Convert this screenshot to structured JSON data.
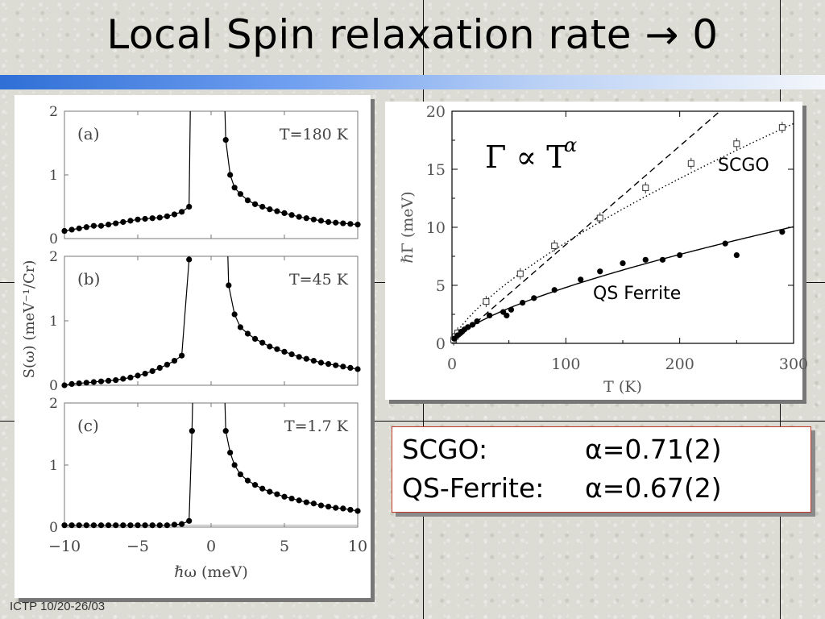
{
  "slide": {
    "title": "Local Spin relaxation rate → 0",
    "footer": "ICTP 10/20-26/03"
  },
  "fit_results": {
    "rows": [
      {
        "label": "SCGO:",
        "value": "α=0.71(2)"
      },
      {
        "label": "QS-Ferrite:",
        "value": "α=0.67(2)"
      }
    ]
  },
  "colors": {
    "title_bar_start": "#2f6fd6",
    "fit_box_border": "#c0392b",
    "marker": "#000000"
  },
  "chart_data": [
    {
      "type": "scatter",
      "xlabel": "ℏω (meV)",
      "ylabel": "S(ω)  (meV⁻¹/Cr)",
      "xlim": [
        -10,
        10
      ],
      "x_ticks": [
        "−10",
        "−5",
        "0",
        "5",
        "10"
      ],
      "panels": [
        {
          "label": "(a)",
          "annotation": "T=180 K",
          "ylim": [
            0,
            2
          ],
          "y_ticks": [
            "0",
            "1",
            "2"
          ],
          "points_neg": [
            [
              -10,
              0.12
            ],
            [
              -9.5,
              0.14
            ],
            [
              -9,
              0.16
            ],
            [
              -8.5,
              0.18
            ],
            [
              -8,
              0.2
            ],
            [
              -7.5,
              0.2
            ],
            [
              -7,
              0.22
            ],
            [
              -6.5,
              0.24
            ],
            [
              -6,
              0.26
            ],
            [
              -5.5,
              0.28
            ],
            [
              -5,
              0.3
            ],
            [
              -4.5,
              0.31
            ],
            [
              -4,
              0.32
            ],
            [
              -3.5,
              0.33
            ],
            [
              -3,
              0.35
            ],
            [
              -2.5,
              0.38
            ],
            [
              -2,
              0.42
            ],
            [
              -1.5,
              0.5
            ]
          ],
          "points_pos": [
            [
              1,
              1.55
            ],
            [
              1.3,
              1.0
            ],
            [
              1.6,
              0.8
            ],
            [
              2,
              0.7
            ],
            [
              2.5,
              0.6
            ],
            [
              3,
              0.54
            ],
            [
              3.5,
              0.5
            ],
            [
              4,
              0.46
            ],
            [
              4.5,
              0.43
            ],
            [
              5,
              0.4
            ],
            [
              5.5,
              0.37
            ],
            [
              6,
              0.34
            ],
            [
              6.5,
              0.32
            ],
            [
              7,
              0.3
            ],
            [
              7.5,
              0.28
            ],
            [
              8,
              0.26
            ],
            [
              8.5,
              0.25
            ],
            [
              9,
              0.24
            ],
            [
              9.5,
              0.23
            ],
            [
              10,
              0.22
            ]
          ]
        },
        {
          "label": "(b)",
          "annotation": "T=45 K",
          "ylim": [
            0,
            2
          ],
          "y_ticks": [
            "0",
            "1",
            "2"
          ],
          "points_neg": [
            [
              -10,
              0.0
            ],
            [
              -9.5,
              0.02
            ],
            [
              -9,
              0.03
            ],
            [
              -8.5,
              0.04
            ],
            [
              -8,
              0.05
            ],
            [
              -7.5,
              0.06
            ],
            [
              -7,
              0.07
            ],
            [
              -6.5,
              0.08
            ],
            [
              -6,
              0.1
            ],
            [
              -5.5,
              0.12
            ],
            [
              -5,
              0.15
            ],
            [
              -4.5,
              0.18
            ],
            [
              -4,
              0.22
            ],
            [
              -3.5,
              0.27
            ],
            [
              -3,
              0.32
            ],
            [
              -2.5,
              0.38
            ],
            [
              -2,
              0.46
            ],
            [
              -1.5,
              1.95
            ]
          ],
          "points_pos": [
            [
              1.2,
              1.55
            ],
            [
              1.6,
              1.1
            ],
            [
              2,
              0.9
            ],
            [
              2.5,
              0.8
            ],
            [
              3,
              0.72
            ],
            [
              3.5,
              0.66
            ],
            [
              4,
              0.6
            ],
            [
              4.5,
              0.56
            ],
            [
              5,
              0.52
            ],
            [
              5.5,
              0.48
            ],
            [
              6,
              0.44
            ],
            [
              6.5,
              0.41
            ],
            [
              7,
              0.38
            ],
            [
              7.5,
              0.35
            ],
            [
              8,
              0.33
            ],
            [
              8.5,
              0.31
            ],
            [
              9,
              0.29
            ],
            [
              9.5,
              0.27
            ],
            [
              10,
              0.25
            ]
          ]
        },
        {
          "label": "(c)",
          "annotation": "T=1.7 K",
          "ylim": [
            0,
            2
          ],
          "y_ticks": [
            "0",
            "1",
            "2"
          ],
          "points_neg": [
            [
              -10,
              0.03
            ],
            [
              -9.5,
              0.03
            ],
            [
              -9,
              0.03
            ],
            [
              -8.5,
              0.03
            ],
            [
              -8,
              0.03
            ],
            [
              -7.5,
              0.03
            ],
            [
              -7,
              0.03
            ],
            [
              -6.5,
              0.03
            ],
            [
              -6,
              0.03
            ],
            [
              -5.5,
              0.03
            ],
            [
              -5,
              0.03
            ],
            [
              -4.5,
              0.03
            ],
            [
              -4,
              0.03
            ],
            [
              -3.5,
              0.03
            ],
            [
              -3,
              0.03
            ],
            [
              -2.5,
              0.04
            ],
            [
              -2,
              0.05
            ],
            [
              -1.5,
              0.1
            ],
            [
              -1.3,
              1.55
            ]
          ],
          "points_pos": [
            [
              1,
              1.55
            ],
            [
              1.3,
              1.2
            ],
            [
              1.6,
              1.0
            ],
            [
              2,
              0.85
            ],
            [
              2.5,
              0.75
            ],
            [
              3,
              0.68
            ],
            [
              3.5,
              0.62
            ],
            [
              4,
              0.57
            ],
            [
              4.5,
              0.53
            ],
            [
              5,
              0.49
            ],
            [
              5.5,
              0.46
            ],
            [
              6,
              0.43
            ],
            [
              6.5,
              0.4
            ],
            [
              7,
              0.38
            ],
            [
              7.5,
              0.35
            ],
            [
              8,
              0.33
            ],
            [
              8.5,
              0.31
            ],
            [
              9,
              0.3
            ],
            [
              9.5,
              0.28
            ],
            [
              10,
              0.26
            ]
          ]
        }
      ]
    },
    {
      "type": "scatter",
      "xlabel": "T (K)",
      "ylabel": "ℏΓ (meV)",
      "xlim": [
        0,
        300
      ],
      "ylim": [
        0,
        20
      ],
      "x_ticks": [
        0,
        100,
        200,
        300
      ],
      "y_ticks": [
        0,
        5,
        10,
        15,
        20
      ],
      "formula": "Γ ∝ T",
      "formula_exponent": "α",
      "series": [
        {
          "name": "SCGO",
          "marker": "open-square",
          "points": [
            [
              1.5,
              0.3
            ],
            [
              3,
              0.6
            ],
            [
              5,
              0.9
            ],
            [
              30,
              3.6
            ],
            [
              60,
              6.0
            ],
            [
              90,
              8.4
            ],
            [
              130,
              10.8
            ],
            [
              170,
              13.4
            ],
            [
              210,
              15.5
            ],
            [
              250,
              17.2
            ],
            [
              290,
              18.6
            ]
          ],
          "fit": {
            "style": "dotted",
            "prefactor": 0.33,
            "exponent": 0.71
          }
        },
        {
          "name": "QS Ferrite",
          "marker": "filled-circle",
          "points": [
            [
              2,
              0.4
            ],
            [
              5,
              0.7
            ],
            [
              8,
              1.0
            ],
            [
              11,
              1.2
            ],
            [
              14,
              1.4
            ],
            [
              18,
              1.6
            ],
            [
              22,
              1.9
            ],
            [
              33,
              2.4
            ],
            [
              45,
              2.7
            ],
            [
              48,
              2.4
            ],
            [
              52,
              2.9
            ],
            [
              62,
              3.5
            ],
            [
              72,
              3.9
            ],
            [
              90,
              4.6
            ],
            [
              113,
              5.5
            ],
            [
              130,
              6.2
            ],
            [
              150,
              6.9
            ],
            [
              170,
              7.2
            ],
            [
              185,
              7.2
            ],
            [
              200,
              7.6
            ],
            [
              240,
              8.6
            ],
            [
              250,
              7.6
            ],
            [
              290,
              9.6
            ]
          ],
          "fit": {
            "style": "solid",
            "prefactor": 0.22,
            "exponent": 0.67
          }
        },
        {
          "name": "",
          "marker": "none",
          "fit": {
            "style": "dashed",
            "prefactor": 0.085,
            "exponent": 1.0
          }
        }
      ]
    }
  ]
}
